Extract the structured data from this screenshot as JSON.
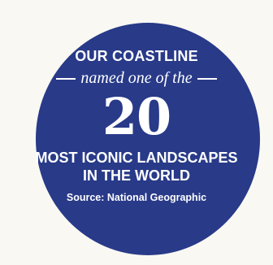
{
  "badge": {
    "color": "#283a88",
    "text_color": "#ffffff",
    "heading": "OUR COASTLINE",
    "subheading": "named one of the",
    "number": "20",
    "tagline_line1": "MOST ICONIC LANDSCAPES",
    "tagline_line2": "IN THE WORLD",
    "source": "Source: National Geographic"
  }
}
